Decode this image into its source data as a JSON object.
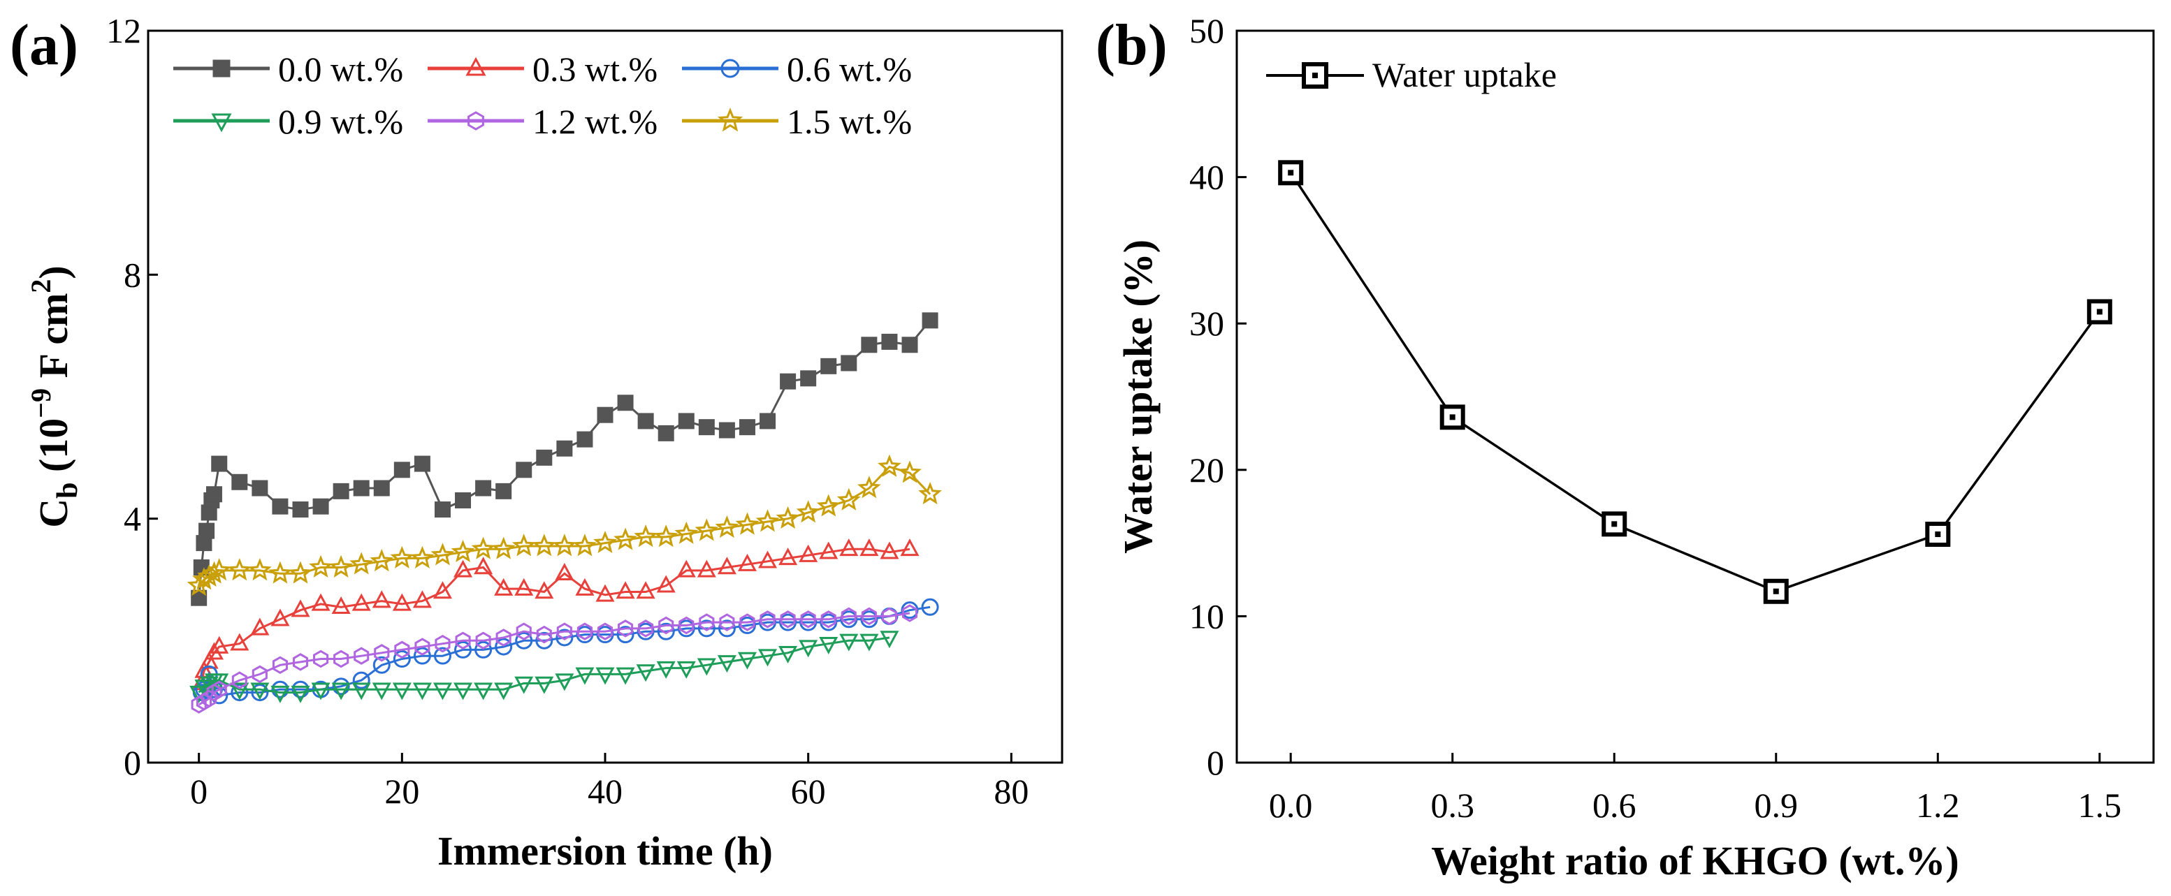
{
  "panel_a": {
    "label": "(a)",
    "tick_labels_x": [
      "0",
      "20",
      "40",
      "60",
      "80"
    ],
    "tick_labels_y": [
      "0",
      "4",
      "8",
      "12"
    ]
  },
  "panel_b": {
    "label": "(b)",
    "tick_labels_x": [
      "0.0",
      "0.3",
      "0.6",
      "0.9",
      "1.2",
      "1.5"
    ],
    "tick_labels_y": [
      "0",
      "10",
      "20",
      "30",
      "40",
      "50"
    ]
  },
  "chart_data": [
    {
      "type": "scatter",
      "title": "(a)",
      "xlabel": "Immersion time (h)",
      "ylabel": "Cb (10-9 F cm2)",
      "ylabel_parts": {
        "main": "C",
        "sub": "b",
        "open": " (10",
        "exp": "−9",
        "mid": " F cm",
        "exp2": "2",
        "close": ")"
      },
      "xlim": [
        -5,
        85
      ],
      "ylim": [
        0,
        12
      ],
      "xticks": [
        0,
        20,
        40,
        60,
        80
      ],
      "yticks": [
        0,
        4,
        8,
        12
      ],
      "legend_position": "top-left",
      "series": [
        {
          "name": "0.0 wt.%",
          "color": "#555555",
          "marker": "square-filled",
          "x": [
            0,
            0.25,
            0.5,
            0.75,
            1,
            1.25,
            1.5,
            2,
            4,
            6,
            8,
            10,
            12,
            14,
            16,
            18,
            20,
            22,
            24,
            26,
            28,
            30,
            32,
            34,
            36,
            38,
            40,
            42,
            44,
            46,
            48,
            50,
            52,
            54,
            56,
            58,
            60,
            62,
            64,
            66,
            68,
            70,
            72
          ],
          "y": [
            2.7,
            3.2,
            3.6,
            3.8,
            4.1,
            4.3,
            4.4,
            4.9,
            4.6,
            4.5,
            4.2,
            4.15,
            4.2,
            4.45,
            4.5,
            4.5,
            4.8,
            4.9,
            4.15,
            4.3,
            4.5,
            4.45,
            4.8,
            5.0,
            5.15,
            5.3,
            5.7,
            5.9,
            5.6,
            5.4,
            5.6,
            5.5,
            5.45,
            5.5,
            5.6,
            6.25,
            6.3,
            6.5,
            6.55,
            6.85,
            6.9,
            6.85,
            7.25
          ]
        },
        {
          "name": "0.3 wt.%",
          "color": "#e8403a",
          "marker": "triangle-up-open",
          "x": [
            0.25,
            0.5,
            1,
            1.5,
            2,
            4,
            6,
            8,
            10,
            12,
            14,
            16,
            18,
            20,
            22,
            24,
            26,
            28,
            30,
            32,
            34,
            36,
            38,
            40,
            42,
            44,
            46,
            48,
            50,
            52,
            54,
            56,
            58,
            60,
            62,
            64,
            66,
            68,
            70
          ],
          "y": [
            1.3,
            1.5,
            1.65,
            1.8,
            1.9,
            1.95,
            2.2,
            2.35,
            2.5,
            2.6,
            2.55,
            2.6,
            2.65,
            2.6,
            2.65,
            2.8,
            3.15,
            3.2,
            2.85,
            2.85,
            2.8,
            3.1,
            2.85,
            2.75,
            2.8,
            2.8,
            2.9,
            3.15,
            3.15,
            3.2,
            3.25,
            3.3,
            3.35,
            3.4,
            3.45,
            3.5,
            3.5,
            3.45,
            3.5
          ]
        },
        {
          "name": "0.6 wt.%",
          "color": "#2a6fd6",
          "marker": "circle-open",
          "x": [
            0.25,
            0.5,
            1,
            1.5,
            2,
            4,
            6,
            8,
            10,
            12,
            14,
            16,
            18,
            20,
            22,
            24,
            26,
            28,
            30,
            32,
            34,
            36,
            38,
            40,
            42,
            44,
            46,
            48,
            50,
            52,
            54,
            56,
            58,
            60,
            62,
            64,
            66,
            68,
            70,
            72
          ],
          "y": [
            1.15,
            1.2,
            1.45,
            1.2,
            1.1,
            1.15,
            1.15,
            1.2,
            1.2,
            1.2,
            1.25,
            1.35,
            1.6,
            1.7,
            1.75,
            1.75,
            1.85,
            1.85,
            1.9,
            2.0,
            2.0,
            2.05,
            2.1,
            2.1,
            2.1,
            2.15,
            2.15,
            2.2,
            2.2,
            2.2,
            2.25,
            2.3,
            2.3,
            2.3,
            2.3,
            2.35,
            2.35,
            2.4,
            2.5,
            2.55
          ]
        },
        {
          "name": "0.9 wt.%",
          "color": "#1f9e5a",
          "marker": "triangle-down-open",
          "x": [
            0,
            0.5,
            1,
            1.5,
            2,
            4,
            6,
            8,
            10,
            12,
            14,
            16,
            18,
            20,
            22,
            24,
            26,
            28,
            30,
            32,
            34,
            36,
            38,
            40,
            42,
            44,
            46,
            48,
            50,
            52,
            54,
            56,
            58,
            60,
            62,
            64,
            66,
            68
          ],
          "y": [
            1.15,
            1.25,
            1.3,
            1.35,
            1.35,
            1.2,
            1.2,
            1.15,
            1.15,
            1.2,
            1.2,
            1.2,
            1.2,
            1.2,
            1.2,
            1.2,
            1.2,
            1.2,
            1.2,
            1.3,
            1.3,
            1.35,
            1.45,
            1.45,
            1.45,
            1.5,
            1.55,
            1.55,
            1.6,
            1.65,
            1.7,
            1.75,
            1.8,
            1.9,
            1.95,
            2.0,
            2.0,
            2.05
          ]
        },
        {
          "name": "1.2 wt.%",
          "color": "#b066e0",
          "marker": "hexagon-open",
          "x": [
            0,
            0.5,
            1,
            1.5,
            2,
            4,
            6,
            8,
            10,
            12,
            14,
            16,
            18,
            20,
            22,
            24,
            26,
            28,
            30,
            32,
            34,
            36,
            38,
            40,
            42,
            44,
            46,
            48,
            50,
            52,
            54,
            56,
            58,
            60,
            62,
            64,
            66,
            68,
            70
          ],
          "y": [
            0.95,
            1.0,
            1.05,
            1.15,
            1.2,
            1.35,
            1.45,
            1.6,
            1.65,
            1.7,
            1.7,
            1.75,
            1.8,
            1.85,
            1.9,
            1.95,
            2.0,
            2.0,
            2.05,
            2.15,
            2.1,
            2.15,
            2.15,
            2.15,
            2.2,
            2.2,
            2.25,
            2.25,
            2.3,
            2.3,
            2.3,
            2.35,
            2.35,
            2.35,
            2.35,
            2.4,
            2.4,
            2.4,
            2.45
          ]
        },
        {
          "name": "1.5 wt.%",
          "color": "#c9a00a",
          "marker": "star-open",
          "x": [
            0,
            0.5,
            1,
            1.5,
            2,
            4,
            6,
            8,
            10,
            12,
            14,
            16,
            18,
            20,
            22,
            24,
            26,
            28,
            30,
            32,
            34,
            36,
            38,
            40,
            42,
            44,
            46,
            48,
            50,
            52,
            54,
            56,
            58,
            60,
            62,
            64,
            66,
            68,
            70,
            72
          ],
          "y": [
            2.9,
            3.0,
            3.05,
            3.1,
            3.15,
            3.15,
            3.15,
            3.1,
            3.1,
            3.2,
            3.2,
            3.25,
            3.3,
            3.35,
            3.35,
            3.4,
            3.45,
            3.5,
            3.5,
            3.55,
            3.55,
            3.55,
            3.55,
            3.6,
            3.65,
            3.7,
            3.7,
            3.75,
            3.8,
            3.85,
            3.9,
            3.95,
            4.0,
            4.1,
            4.2,
            4.3,
            4.5,
            4.85,
            4.75,
            4.4
          ]
        }
      ]
    },
    {
      "type": "line",
      "title": "(b)",
      "xlabel": "Weight ratio of KHGO (wt.%)",
      "ylabel": "Water uptake (%)",
      "xlim": [
        -0.1,
        1.6
      ],
      "ylim": [
        0,
        50
      ],
      "xticks": [
        0.0,
        0.3,
        0.6,
        0.9,
        1.2,
        1.5
      ],
      "yticks": [
        0,
        10,
        20,
        30,
        40,
        50
      ],
      "legend_position": "top-left",
      "series": [
        {
          "name": "Water uptake",
          "color": "#000000",
          "marker": "square-dot-open",
          "x": [
            0.0,
            0.3,
            0.6,
            0.9,
            1.2,
            1.5
          ],
          "y": [
            40.3,
            23.6,
            16.3,
            11.7,
            15.6,
            30.8
          ]
        }
      ]
    }
  ]
}
